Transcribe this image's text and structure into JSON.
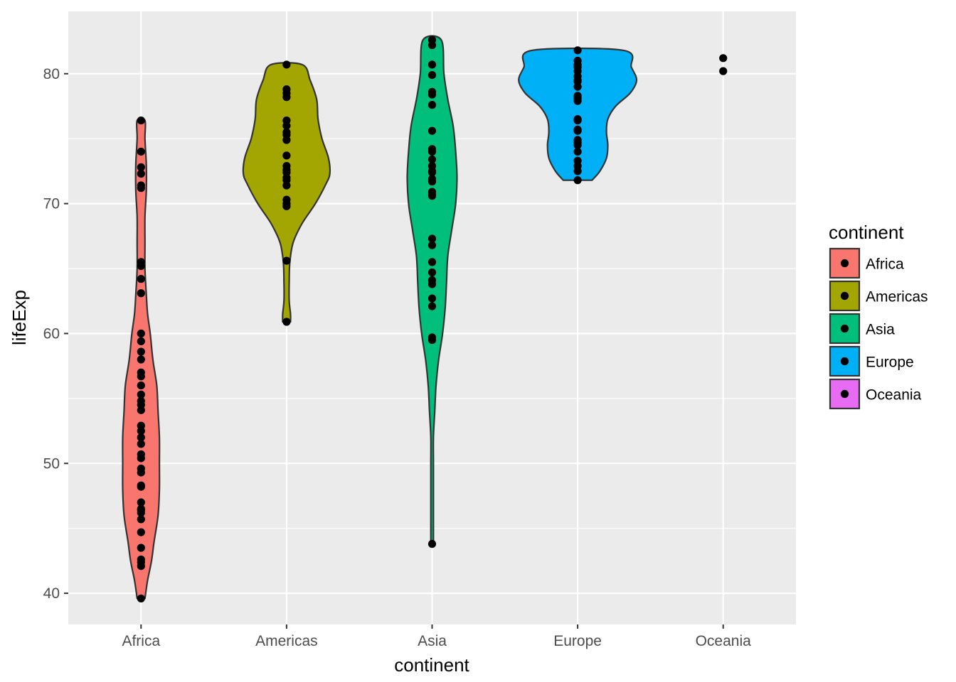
{
  "chart_data": {
    "type": "violin",
    "xlabel": "continent",
    "ylabel": "lifeExp",
    "categories": [
      "Africa",
      "Americas",
      "Asia",
      "Europe",
      "Oceania"
    ],
    "ylim": [
      37.6,
      84.8
    ],
    "yticks": [
      40,
      50,
      60,
      70,
      80
    ],
    "ytick_labels": [
      "40",
      "50",
      "60",
      "70",
      "80"
    ],
    "grid": true,
    "legend": {
      "title": "continent",
      "position": "right",
      "entries": [
        {
          "label": "Africa",
          "color": "#F8766D"
        },
        {
          "label": "Americas",
          "color": "#A3A500"
        },
        {
          "label": "Asia",
          "color": "#00BF7D"
        },
        {
          "label": "Europe",
          "color": "#00B0F6"
        },
        {
          "label": "Oceania",
          "color": "#E76BF3"
        }
      ]
    },
    "series": [
      {
        "name": "Africa",
        "color": "#F8766D",
        "points": [
          76.4,
          74.0,
          72.8,
          72.3,
          71.4,
          71.2,
          65.5,
          65.2,
          64.2,
          63.1,
          60.0,
          59.4,
          58.6,
          58.0,
          57.0,
          56.7,
          56.0,
          55.3,
          54.8,
          54.5,
          54.1,
          52.9,
          52.5,
          52.0,
          51.5,
          50.7,
          50.4,
          49.6,
          49.3,
          48.3,
          48.2,
          47.0,
          46.5,
          46.4,
          46.2,
          45.7,
          44.7,
          43.5,
          42.6,
          42.4,
          42.1,
          39.6
        ],
        "violin": {
          "ys": [
            39.6,
            41,
            42.5,
            44,
            46,
            48,
            50,
            52,
            54,
            56,
            58,
            60,
            61.5,
            63,
            65,
            67,
            69,
            71,
            73,
            75,
            76.4
          ],
          "halfwidths": [
            0.03,
            0.05,
            0.08,
            0.1,
            0.13,
            0.14,
            0.14,
            0.14,
            0.13,
            0.12,
            0.09,
            0.07,
            0.05,
            0.04,
            0.03,
            0.03,
            0.03,
            0.04,
            0.04,
            0.03,
            0.03
          ]
        }
      },
      {
        "name": "Americas",
        "color": "#A3A500",
        "points": [
          80.7,
          78.8,
          78.5,
          78.2,
          76.4,
          76.0,
          75.5,
          75.3,
          74.9,
          73.7,
          72.9,
          72.6,
          72.4,
          72.0,
          71.8,
          71.4,
          70.3,
          70.0,
          69.8,
          65.6,
          60.9
        ],
        "violin": {
          "ys": [
            60.9,
            61.5,
            62.5,
            64,
            65.5,
            67,
            68.5,
            70,
            71.5,
            72.3,
            73.5,
            75,
            76.5,
            78,
            79.5,
            80.7
          ],
          "halfwidths": [
            0.03,
            0.03,
            0.02,
            0.02,
            0.025,
            0.05,
            0.12,
            0.22,
            0.3,
            0.33,
            0.32,
            0.27,
            0.24,
            0.23,
            0.18,
            0.12
          ]
        }
      },
      {
        "name": "Asia",
        "color": "#00BF7D",
        "points": [
          82.6,
          82.2,
          80.7,
          79.9,
          78.6,
          78.4,
          77.6,
          75.6,
          74.2,
          74.0,
          73.4,
          72.9,
          72.5,
          72.4,
          71.9,
          71.7,
          70.9,
          70.6,
          70.7,
          67.3,
          66.8,
          65.5,
          64.7,
          64.1,
          63.8,
          62.7,
          62.1,
          59.7,
          59.5,
          43.8
        ],
        "violin": {
          "ys": [
            43.8,
            46,
            48,
            50,
            52,
            54,
            56,
            58,
            60,
            62,
            64,
            66,
            68,
            70,
            72,
            74,
            76,
            78,
            80,
            82.6
          ],
          "halfwidths": [
            0.01,
            0.01,
            0.01,
            0.01,
            0.01,
            0.02,
            0.03,
            0.05,
            0.08,
            0.1,
            0.11,
            0.12,
            0.15,
            0.18,
            0.19,
            0.18,
            0.16,
            0.12,
            0.09,
            0.07
          ]
        }
      },
      {
        "name": "Europe",
        "color": "#00B0F6",
        "points": [
          81.8,
          81.0,
          80.7,
          80.5,
          80.2,
          79.8,
          79.5,
          79.4,
          79.0,
          78.3,
          78.1,
          77.9,
          76.5,
          76.4,
          75.7,
          75.6,
          74.9,
          74.7,
          74.5,
          74.0,
          73.3,
          72.9,
          72.5,
          71.8
        ],
        "violin": {
          "ys": [
            71.8,
            72.5,
            73.5,
            74.5,
            75.5,
            76.5,
            77.5,
            78.5,
            79.5,
            80.5,
            81.8
          ],
          "halfwidths": [
            0.11,
            0.17,
            0.22,
            0.23,
            0.22,
            0.23,
            0.29,
            0.4,
            0.45,
            0.41,
            0.35
          ]
        }
      },
      {
        "name": "Oceania",
        "color": "#E76BF3",
        "points": [
          81.2,
          80.2
        ],
        "violin": null
      }
    ]
  }
}
